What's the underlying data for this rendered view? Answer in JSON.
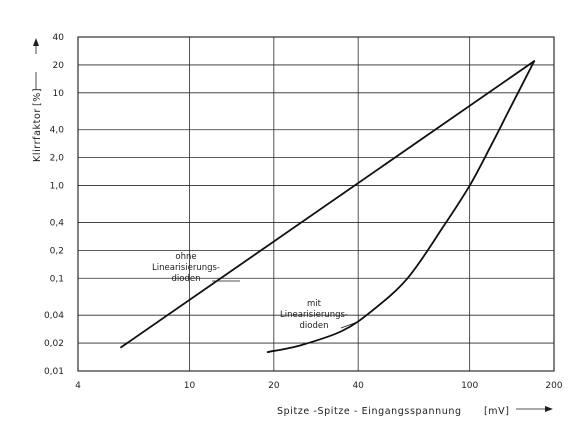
{
  "chart_data": {
    "type": "line",
    "title": "",
    "xlabel": "Spitze -Spitze - Eingangsspannung",
    "xunit": "[mV]",
    "ylabel": "Klirrfaktor",
    "yunit": "[%]",
    "xscale": "log",
    "yscale": "log",
    "xlim": [
      4,
      200
    ],
    "ylim": [
      0.01,
      40
    ],
    "grid": true,
    "x_ticks": [
      {
        "value": 4,
        "label": "4"
      },
      {
        "value": 10,
        "label": "10"
      },
      {
        "value": 20,
        "label": "20"
      },
      {
        "value": 40,
        "label": "40"
      },
      {
        "value": 100,
        "label": "100"
      },
      {
        "value": 200,
        "label": "200"
      }
    ],
    "y_ticks": [
      {
        "value": 0.01,
        "label": "0,01"
      },
      {
        "value": 0.02,
        "label": "0,02"
      },
      {
        "value": 0.04,
        "label": "0,04"
      },
      {
        "value": 0.1,
        "label": "0,1"
      },
      {
        "value": 0.2,
        "label": "0,2"
      },
      {
        "value": 0.4,
        "label": "0,4"
      },
      {
        "value": 1,
        "label": "1,0"
      },
      {
        "value": 2,
        "label": "2,0"
      },
      {
        "value": 4,
        "label": "4,0"
      },
      {
        "value": 10,
        "label": "10"
      },
      {
        "value": 20,
        "label": "20"
      },
      {
        "value": 40,
        "label": "40"
      }
    ],
    "series": [
      {
        "name": "ohne Linearisierungs-dioden",
        "label_lines": [
          "ohne",
          "Linearisierungs-",
          "dioden"
        ],
        "x": [
          5.7,
          170
        ],
        "y": [
          0.018,
          22
        ]
      },
      {
        "name": "mit Linearisierungs-dioden",
        "label_lines": [
          "mit",
          "Linearisierungs-",
          "dioden"
        ],
        "x": [
          19,
          25,
          35,
          45,
          60,
          80,
          100,
          120,
          140,
          170
        ],
        "y": [
          0.016,
          0.019,
          0.027,
          0.045,
          0.1,
          0.35,
          1.0,
          2.8,
          7.0,
          22
        ]
      }
    ]
  }
}
